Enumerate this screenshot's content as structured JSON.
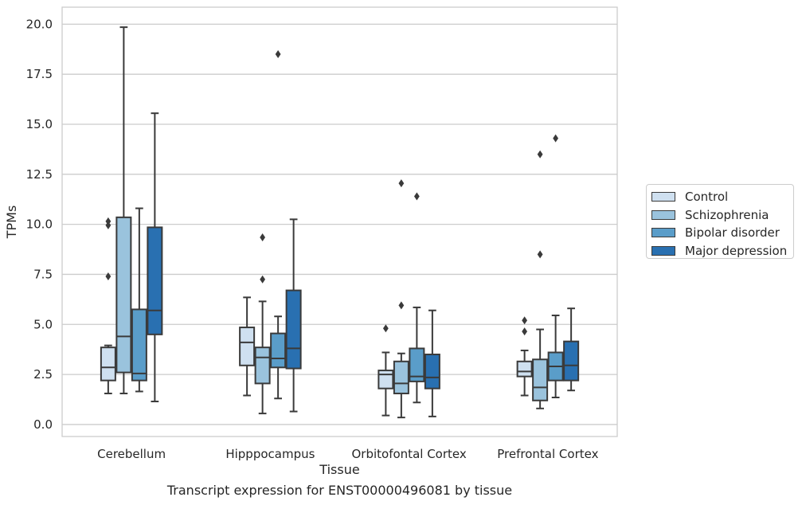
{
  "caption": "Transcript expression for ENST00000496081 by tissue",
  "chart_data": {
    "type": "box",
    "title": "",
    "xlabel": "Tissue",
    "ylabel": "TPMs",
    "ylim": [
      -0.6,
      20.85
    ],
    "yticks": [
      0.0,
      2.5,
      5.0,
      7.5,
      10.0,
      12.5,
      15.0,
      17.5,
      20.0
    ],
    "ytick_labels": [
      "0.0",
      "2.5",
      "5.0",
      "7.5",
      "10.0",
      "12.5",
      "15.0",
      "17.5",
      "20.0"
    ],
    "grid": true,
    "legend_position": "right, outside plot",
    "categories": [
      "Cerebellum",
      "Hipppocampus",
      "Orbitofontal Cortex",
      "Prefrontal Cortex"
    ],
    "series": [
      {
        "name": "Control",
        "color": "#cfe0f0",
        "boxes": [
          {
            "whislo": 1.55,
            "q1": 2.2,
            "med": 2.85,
            "q3": 3.85,
            "whishi": 3.95,
            "fliers": [
              7.4,
              9.95,
              10.15
            ]
          },
          {
            "whislo": 1.45,
            "q1": 2.95,
            "med": 4.1,
            "q3": 4.85,
            "whishi": 6.35,
            "fliers": []
          },
          {
            "whislo": 0.45,
            "q1": 1.8,
            "med": 2.5,
            "q3": 2.7,
            "whishi": 3.6,
            "fliers": [
              4.8
            ]
          },
          {
            "whislo": 1.45,
            "q1": 2.4,
            "med": 2.65,
            "q3": 3.15,
            "whishi": 3.7,
            "fliers": [
              4.65,
              5.2
            ]
          }
        ]
      },
      {
        "name": "Schizophrenia",
        "color": "#9ac3dd",
        "boxes": [
          {
            "whislo": 1.55,
            "q1": 2.6,
            "med": 4.4,
            "q3": 10.35,
            "whishi": 19.85,
            "fliers": []
          },
          {
            "whislo": 0.55,
            "q1": 2.05,
            "med": 3.35,
            "q3": 3.85,
            "whishi": 6.15,
            "fliers": [
              7.25,
              9.35
            ]
          },
          {
            "whislo": 0.35,
            "q1": 1.55,
            "med": 2.05,
            "q3": 3.15,
            "whishi": 3.55,
            "fliers": [
              5.95,
              12.05
            ]
          },
          {
            "whislo": 0.8,
            "q1": 1.2,
            "med": 1.85,
            "q3": 3.25,
            "whishi": 4.75,
            "fliers": [
              8.5,
              13.5
            ]
          }
        ]
      },
      {
        "name": "Bipolar disorder",
        "color": "#5a9dc9",
        "boxes": [
          {
            "whislo": 1.65,
            "q1": 2.2,
            "med": 2.55,
            "q3": 5.75,
            "whishi": 10.8,
            "fliers": []
          },
          {
            "whislo": 1.3,
            "q1": 2.85,
            "med": 3.3,
            "q3": 4.55,
            "whishi": 5.4,
            "fliers": [
              18.5
            ]
          },
          {
            "whislo": 1.1,
            "q1": 2.15,
            "med": 2.4,
            "q3": 3.8,
            "whishi": 5.85,
            "fliers": [
              11.4
            ]
          },
          {
            "whislo": 1.35,
            "q1": 2.2,
            "med": 2.9,
            "q3": 3.6,
            "whishi": 5.45,
            "fliers": [
              14.3
            ]
          }
        ]
      },
      {
        "name": "Major depression",
        "color": "#2970b1",
        "boxes": [
          {
            "whislo": 1.15,
            "q1": 4.5,
            "med": 5.7,
            "q3": 9.85,
            "whishi": 15.55,
            "fliers": []
          },
          {
            "whislo": 0.65,
            "q1": 2.8,
            "med": 3.8,
            "q3": 6.7,
            "whishi": 10.25,
            "fliers": []
          },
          {
            "whislo": 0.4,
            "q1": 1.8,
            "med": 2.35,
            "q3": 3.5,
            "whishi": 5.7,
            "fliers": []
          },
          {
            "whislo": 1.7,
            "q1": 2.2,
            "med": 2.95,
            "q3": 4.15,
            "whishi": 5.8,
            "fliers": []
          }
        ]
      }
    ]
  },
  "colors": {
    "grid": "#cccccc",
    "frame": "#cccccc",
    "box_edge": "#3a3a3a",
    "text": "#262626"
  }
}
